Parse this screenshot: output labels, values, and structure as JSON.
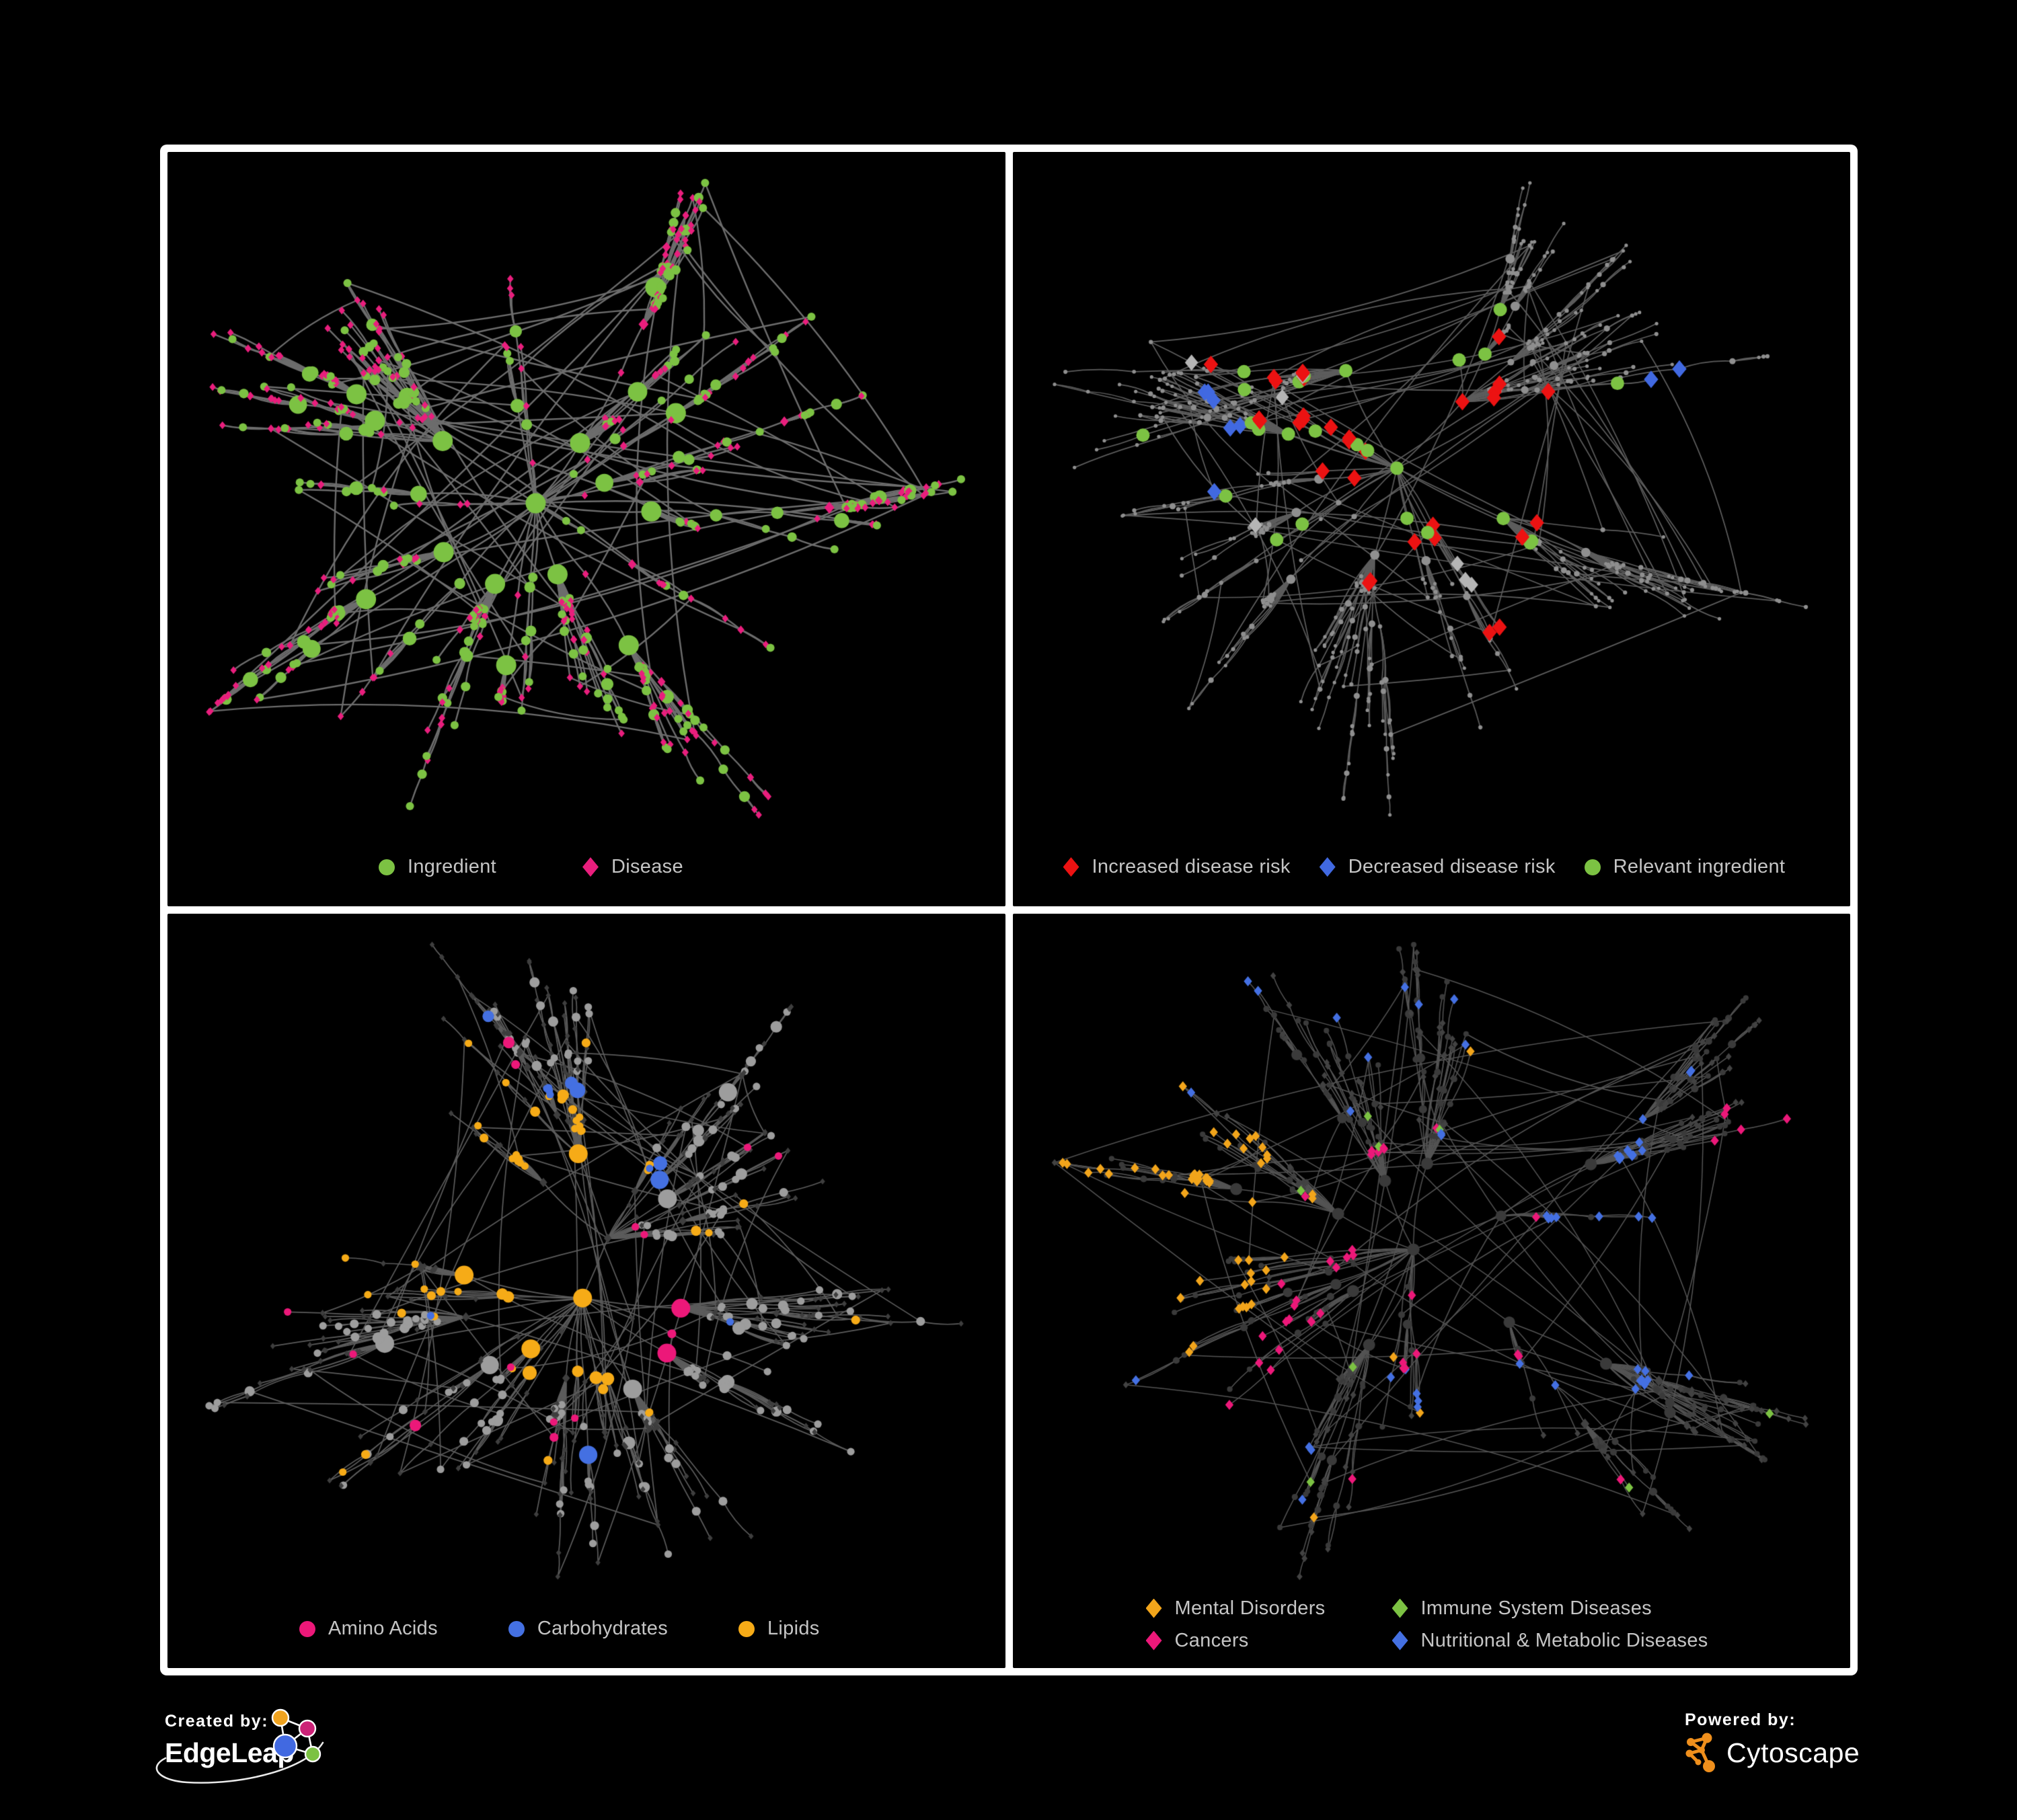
{
  "page": {
    "background": "#000000",
    "frame_color": "#ffffff"
  },
  "network": {
    "node_count": 640,
    "extra_edges": 70,
    "node_shapes": {
      "ingredient": "circle",
      "disease": "diamond"
    },
    "fit_margins": {
      "l": 62,
      "r": 66,
      "t": 46,
      "b": 136
    }
  },
  "panels": [
    {
      "name": "panel-ingredient-disease",
      "seed": 7,
      "style": {
        "edge_color": "#6d6d6d",
        "edge_width": 2.4,
        "ingredient": {
          "color": "#7cc243",
          "base": 5.0,
          "deg_mult": 1.05,
          "max": 15,
          "shape": "circle"
        },
        "disease": {
          "color": "#e91e7d",
          "base": 5.5,
          "deg_mult": 0.3,
          "max": 9,
          "shape": "diamond"
        }
      },
      "highlights": [],
      "legend": {
        "items": [
          {
            "shape": "circle",
            "color": "#7cc243",
            "label": "Ingredient"
          },
          {
            "shape": "diamond",
            "color": "#e91e7d",
            "label": "Disease"
          }
        ]
      }
    },
    {
      "name": "panel-disease-risk",
      "seed": 11,
      "style": {
        "edge_color": "#5d5d5d",
        "edge_width": 1.7,
        "ingredient": {
          "color": "#8f8f8f",
          "base": 2.6,
          "deg_mult": 0.5,
          "max": 7,
          "shape": "circle"
        },
        "disease": {
          "color": "#8f8f8f",
          "base": 2.4,
          "deg_mult": 0.2,
          "max": 5,
          "shape": "circle"
        }
      },
      "highlights": [
        {
          "group": "increased-disease-risk",
          "target": "disease",
          "shape": "diamond",
          "color": "#ec1212",
          "size": 13,
          "spots": [
            [
              0.4,
              0.3,
              3
            ],
            [
              0.44,
              0.36,
              4
            ],
            [
              0.36,
              0.42,
              4
            ],
            [
              0.48,
              0.44,
              3
            ],
            [
              0.52,
              0.38,
              2
            ],
            [
              0.3,
              0.38,
              2
            ],
            [
              0.28,
              0.3,
              2
            ],
            [
              0.56,
              0.3,
              1
            ],
            [
              0.6,
              0.45,
              2
            ],
            [
              0.5,
              0.55,
              2
            ],
            [
              0.44,
              0.6,
              2
            ],
            [
              0.6,
              0.7,
              2
            ],
            [
              0.57,
              0.25,
              1
            ],
            [
              0.65,
              0.33,
              1
            ],
            [
              0.23,
              0.28,
              1
            ]
          ]
        },
        {
          "group": "decreased-disease-risk",
          "target": "disease",
          "shape": "diamond",
          "color": "#4169e1",
          "size": 13,
          "spots": [
            [
              0.2,
              0.33,
              3
            ],
            [
              0.23,
              0.4,
              2
            ],
            [
              0.18,
              0.45,
              1
            ],
            [
              0.82,
              0.34,
              2
            ]
          ]
        },
        {
          "group": "other-disease",
          "target": "disease",
          "shape": "diamond",
          "color": "#b5b5b5",
          "size": 12,
          "spots": [
            [
              0.17,
              0.28,
              1
            ],
            [
              0.3,
              0.34,
              1
            ],
            [
              0.43,
              0.33,
              1
            ],
            [
              0.47,
              0.52,
              1
            ],
            [
              0.52,
              0.57,
              1
            ],
            [
              0.6,
              0.62,
              1
            ],
            [
              0.26,
              0.52,
              1
            ]
          ]
        },
        {
          "group": "relevant-ingredient",
          "target": "ingredient",
          "shape": "circle",
          "color": "#7cc243",
          "size": 10,
          "spots": [
            [
              0.36,
              0.32,
              3
            ],
            [
              0.42,
              0.4,
              4
            ],
            [
              0.3,
              0.4,
              3
            ],
            [
              0.25,
              0.3,
              2
            ],
            [
              0.46,
              0.28,
              2
            ],
            [
              0.52,
              0.5,
              3
            ],
            [
              0.6,
              0.58,
              2
            ],
            [
              0.2,
              0.48,
              1
            ],
            [
              0.14,
              0.4,
              1
            ],
            [
              0.35,
              0.55,
              1
            ],
            [
              0.28,
              0.6,
              1
            ],
            [
              0.79,
              0.35,
              1
            ],
            [
              0.48,
              0.18,
              1
            ]
          ]
        }
      ],
      "legend": {
        "items": [
          {
            "shape": "diamond",
            "color": "#ec1212",
            "label": "Increased disease risk"
          },
          {
            "shape": "diamond",
            "color": "#4169e1",
            "label": "Decreased disease risk"
          },
          {
            "shape": "circle",
            "color": "#7cc243",
            "label": "Relevant ingredient"
          }
        ]
      }
    },
    {
      "name": "panel-nutrient-classes",
      "seed": 13,
      "style": {
        "edge_color": "#5c5c5c",
        "edge_width": 1.7,
        "ingredient": {
          "color": "#9d9d9d",
          "base": 4.6,
          "deg_mult": 1.0,
          "max": 14,
          "shape": "circle"
        },
        "disease": {
          "color": "#3e3e3e",
          "base": 4.4,
          "deg_mult": 0.2,
          "max": 7,
          "shape": "diamond"
        }
      },
      "highlights": [
        {
          "group": "lipids",
          "target": "ingredient",
          "shape": "circle",
          "color": "#f6ab17",
          "size": 0,
          "spots": [
            [
              0.47,
              0.28,
              10
            ],
            [
              0.5,
              0.33,
              8
            ],
            [
              0.43,
              0.36,
              6
            ],
            [
              0.38,
              0.45,
              5
            ],
            [
              0.33,
              0.5,
              4
            ],
            [
              0.52,
              0.62,
              5
            ],
            [
              0.47,
              0.66,
              3
            ],
            [
              0.25,
              0.55,
              2
            ],
            [
              0.58,
              0.72,
              2
            ],
            [
              0.15,
              0.78,
              2
            ],
            [
              0.65,
              0.5,
              2
            ],
            [
              0.7,
              0.4,
              1
            ],
            [
              0.3,
              0.2,
              2
            ],
            [
              0.55,
              0.15,
              1
            ],
            [
              0.08,
              0.45,
              1
            ],
            [
              0.85,
              0.6,
              1
            ],
            [
              0.4,
              0.85,
              1
            ]
          ]
        },
        {
          "group": "carbohydrates",
          "target": "ingredient",
          "shape": "circle",
          "color": "#4470e2",
          "size": 0,
          "spots": [
            [
              0.47,
              0.3,
              4
            ],
            [
              0.5,
              0.36,
              3
            ],
            [
              0.44,
              0.33,
              2
            ],
            [
              0.1,
              0.25,
              1
            ],
            [
              0.68,
              0.6,
              1
            ],
            [
              0.52,
              0.8,
              1
            ],
            [
              0.38,
              0.42,
              1
            ]
          ]
        },
        {
          "group": "amino-acids",
          "target": "ingredient",
          "shape": "circle",
          "color": "#ec1879",
          "size": 0,
          "spots": [
            [
              0.12,
              0.48,
              1
            ],
            [
              0.2,
              0.68,
              1
            ],
            [
              0.28,
              0.75,
              1
            ],
            [
              0.45,
              0.78,
              2
            ],
            [
              0.52,
              0.72,
              1
            ],
            [
              0.6,
              0.62,
              2
            ],
            [
              0.65,
              0.55,
              1
            ],
            [
              0.7,
              0.3,
              1
            ],
            [
              0.85,
              0.32,
              1
            ],
            [
              0.35,
              0.18,
              1
            ],
            [
              0.25,
              0.3,
              1
            ],
            [
              0.55,
              0.48,
              1
            ],
            [
              0.48,
              0.55,
              1
            ],
            [
              0.4,
              0.62,
              1
            ]
          ]
        }
      ],
      "legend": {
        "items": [
          {
            "shape": "circle",
            "color": "#ec1879",
            "label": "Amino Acids"
          },
          {
            "shape": "circle",
            "color": "#4470e2",
            "label": "Carbohydrates"
          },
          {
            "shape": "circle",
            "color": "#f6ab17",
            "label": "Lipids"
          }
        ]
      }
    },
    {
      "name": "panel-disease-classes",
      "seed": 17,
      "style": {
        "edge_color": "#545454",
        "edge_width": 1.5,
        "ingredient": {
          "color": "#3a3a3a",
          "base": 3.6,
          "deg_mult": 0.5,
          "max": 9,
          "shape": "circle"
        },
        "disease": {
          "color": "#424242",
          "base": 5.0,
          "deg_mult": 0.25,
          "max": 8,
          "shape": "diamond"
        }
      },
      "highlights": [
        {
          "group": "mental-disorders",
          "target": "disease",
          "shape": "diamond",
          "color": "#f2a51b",
          "size": 7.5,
          "spots": [
            [
              0.16,
              0.38,
              12
            ],
            [
              0.2,
              0.32,
              8
            ],
            [
              0.12,
              0.44,
              8
            ],
            [
              0.22,
              0.44,
              6
            ],
            [
              0.18,
              0.5,
              5
            ],
            [
              0.26,
              0.36,
              4
            ],
            [
              0.1,
              0.3,
              3
            ],
            [
              0.3,
              0.28,
              2
            ],
            [
              0.35,
              0.4,
              2
            ],
            [
              0.08,
              0.55,
              2
            ],
            [
              0.28,
              0.55,
              1
            ],
            [
              0.42,
              0.6,
              1
            ],
            [
              0.55,
              0.78,
              1
            ],
            [
              0.35,
              0.9,
              1
            ],
            [
              0.6,
              0.18,
              1
            ]
          ]
        },
        {
          "group": "cancers",
          "target": "disease",
          "shape": "diamond",
          "color": "#ec1879",
          "size": 7.5,
          "spots": [
            [
              0.42,
              0.48,
              8
            ],
            [
              0.46,
              0.54,
              6
            ],
            [
              0.38,
              0.55,
              4
            ],
            [
              0.5,
              0.45,
              3
            ],
            [
              0.44,
              0.4,
              2
            ],
            [
              0.35,
              0.62,
              2
            ],
            [
              0.55,
              0.6,
              2
            ],
            [
              0.3,
              0.72,
              2
            ],
            [
              0.94,
              0.34,
              3
            ],
            [
              0.9,
              0.3,
              2
            ],
            [
              0.26,
              0.64,
              1
            ],
            [
              0.5,
              0.3,
              1
            ],
            [
              0.58,
              0.4,
              1
            ],
            [
              0.48,
              0.85,
              1
            ],
            [
              0.65,
              0.9,
              1
            ],
            [
              0.2,
              0.8,
              1
            ]
          ]
        },
        {
          "group": "nutritional-metabolic-diseases",
          "target": "disease",
          "shape": "diamond",
          "color": "#4470e2",
          "size": 7.5,
          "spots": [
            [
              0.6,
              0.52,
              8
            ],
            [
              0.64,
              0.56,
              5
            ],
            [
              0.58,
              0.6,
              4
            ],
            [
              0.72,
              0.3,
              4
            ],
            [
              0.76,
              0.34,
              3
            ],
            [
              0.68,
              0.25,
              3
            ],
            [
              0.8,
              0.42,
              3
            ],
            [
              0.85,
              0.2,
              2
            ],
            [
              0.62,
              0.1,
              2
            ],
            [
              0.5,
              0.08,
              2
            ],
            [
              0.4,
              0.12,
              2
            ],
            [
              0.22,
              0.12,
              2
            ],
            [
              0.1,
              0.2,
              1
            ],
            [
              0.3,
              0.8,
              2
            ],
            [
              0.25,
              0.88,
              1
            ],
            [
              0.45,
              0.7,
              1
            ],
            [
              0.75,
              0.6,
              2
            ],
            [
              0.9,
              0.55,
              1
            ],
            [
              0.55,
              0.35,
              2
            ],
            [
              0.35,
              0.3,
              1
            ],
            [
              0.15,
              0.65,
              1
            ]
          ]
        },
        {
          "group": "immune-system-diseases",
          "target": "disease",
          "shape": "diamond",
          "color": "#7cc243",
          "size": 7.5,
          "spots": [
            [
              0.36,
              0.42,
              1
            ],
            [
              0.44,
              0.35,
              1
            ],
            [
              0.4,
              0.28,
              1
            ],
            [
              0.52,
              0.55,
              1
            ],
            [
              0.3,
              0.85,
              1
            ],
            [
              0.62,
              0.45,
              1
            ],
            [
              0.7,
              0.88,
              1
            ],
            [
              0.95,
              0.75,
              1
            ]
          ]
        }
      ],
      "legend": {
        "items": [
          {
            "shape": "diamond",
            "color": "#f2a51b",
            "label": "Mental Disorders"
          },
          {
            "shape": "diamond",
            "color": "#7cc243",
            "label": "Immune System Diseases"
          },
          {
            "shape": "diamond",
            "color": "#ec1879",
            "label": "Cancers"
          },
          {
            "shape": "diamond",
            "color": "#4470e2",
            "label": "Nutritional & Metabolic Diseases"
          }
        ]
      }
    }
  ],
  "footer": {
    "created_by": {
      "label": "Created by:",
      "brand": "EdgeLeap"
    },
    "powered_by": {
      "label": "Powered by:",
      "brand": "Cytoscape"
    },
    "edgeleap_colors": {
      "orange": "#f0a31f",
      "magenta": "#cc2277",
      "blue": "#4169e1",
      "green": "#7cc243"
    },
    "cytoscape_color": "#ef8f1c"
  }
}
